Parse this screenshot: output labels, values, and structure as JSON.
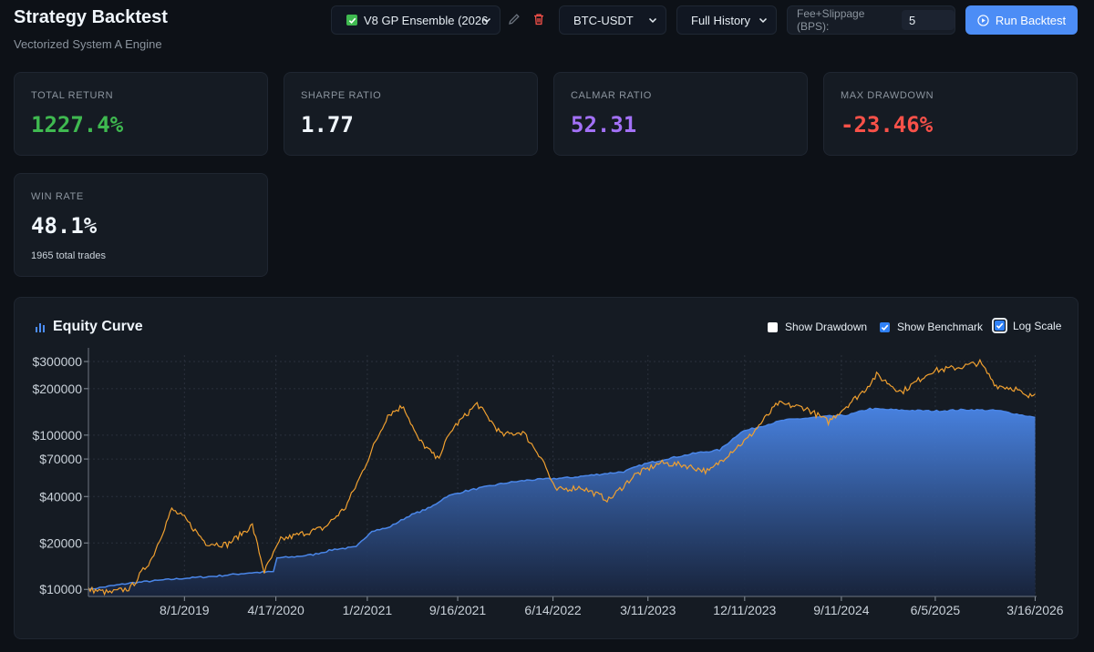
{
  "header": {
    "title": "Strategy Backtest",
    "subtitle": "Vectorized System A Engine",
    "strategy_value": "V8 GP Ensemble (2026",
    "pair_value": "BTC-USDT",
    "history_value": "Full History",
    "fee_label": "Fee+Slippage (BPS):",
    "fee_value": "5",
    "run_label": "Run Backtest"
  },
  "stats": [
    {
      "label": "TOTAL RETURN",
      "value": "1227.4%",
      "color": "#3fb950"
    },
    {
      "label": "SHARPE RATIO",
      "value": "1.77",
      "color": "#f0f6fc"
    },
    {
      "label": "CALMAR RATIO",
      "value": "52.31",
      "color": "#a371f7"
    },
    {
      "label": "MAX DRAWDOWN",
      "value": "-23.46%",
      "color": "#f85149"
    }
  ],
  "win_rate": {
    "label": "WIN RATE",
    "value": "48.1%",
    "sub": "1965 total trades"
  },
  "chart": {
    "title": "Equity Curve",
    "toggles": [
      {
        "label": "Show Drawdown",
        "checked": false
      },
      {
        "label": "Show Benchmark",
        "checked": true
      },
      {
        "label": "Log Scale",
        "checked": true
      }
    ]
  },
  "colors": {
    "strategy": "#4a86e8",
    "benchmark": "#f0a030",
    "accent": "#4c8df6"
  },
  "chart_data": {
    "type": "area",
    "log_scale": true,
    "grid": true,
    "legend": "none",
    "ylim": [
      9000,
      330000
    ],
    "y_ticks": [
      {
        "v": 10000,
        "label": "$10000"
      },
      {
        "v": 20000,
        "label": "$20000"
      },
      {
        "v": 40000,
        "label": "$40000"
      },
      {
        "v": 70000,
        "label": "$70000"
      },
      {
        "v": 100000,
        "label": "$100000"
      },
      {
        "v": 200000,
        "label": "$200000"
      },
      {
        "v": 300000,
        "label": "$300000"
      }
    ],
    "x_ticks": [
      "8/1/2019",
      "4/17/2020",
      "1/2/2021",
      "9/16/2021",
      "6/14/2022",
      "3/11/2023",
      "12/11/2023",
      "9/11/2024",
      "6/5/2025",
      "3/16/2026"
    ],
    "xlim": [
      "2018-11-01",
      "2026-03-20"
    ],
    "series": [
      {
        "role": "strategy",
        "points": [
          [
            "2018-11-01",
            10000
          ],
          [
            "2019-03-01",
            11000
          ],
          [
            "2019-06-01",
            11500
          ],
          [
            "2019-08-01",
            11800
          ],
          [
            "2019-11-01",
            12200
          ],
          [
            "2020-02-01",
            12800
          ],
          [
            "2020-04-10",
            13000
          ],
          [
            "2020-04-20",
            16000
          ],
          [
            "2020-06-01",
            16200
          ],
          [
            "2020-08-01",
            16800
          ],
          [
            "2020-10-01",
            18200
          ],
          [
            "2020-12-01",
            18800
          ],
          [
            "2021-01-15",
            24000
          ],
          [
            "2021-03-01",
            25000
          ],
          [
            "2021-05-01",
            30000
          ],
          [
            "2021-07-01",
            34000
          ],
          [
            "2021-08-15",
            40000
          ],
          [
            "2021-10-01",
            43000
          ],
          [
            "2021-12-01",
            46000
          ],
          [
            "2022-02-01",
            49000
          ],
          [
            "2022-04-01",
            51000
          ],
          [
            "2022-06-01",
            52000
          ],
          [
            "2022-08-01",
            53000
          ],
          [
            "2022-10-01",
            55000
          ],
          [
            "2023-01-01",
            58000
          ],
          [
            "2023-03-01",
            65000
          ],
          [
            "2023-05-01",
            70000
          ],
          [
            "2023-08-01",
            77000
          ],
          [
            "2023-10-01",
            80000
          ],
          [
            "2023-12-01",
            105000
          ],
          [
            "2024-02-01",
            115000
          ],
          [
            "2024-04-01",
            125000
          ],
          [
            "2024-08-01",
            132000
          ],
          [
            "2024-10-01",
            135000
          ],
          [
            "2024-12-01",
            148000
          ],
          [
            "2025-03-01",
            145000
          ],
          [
            "2025-06-01",
            143000
          ],
          [
            "2025-09-01",
            146000
          ],
          [
            "2025-12-01",
            144000
          ],
          [
            "2026-03-16",
            130000
          ]
        ]
      },
      {
        "role": "benchmark",
        "points": [
          [
            "2018-11-01",
            10000
          ],
          [
            "2019-01-01",
            9500
          ],
          [
            "2019-03-01",
            10200
          ],
          [
            "2019-05-01",
            16000
          ],
          [
            "2019-06-26",
            33000
          ],
          [
            "2019-08-01",
            29000
          ],
          [
            "2019-10-01",
            20000
          ],
          [
            "2019-12-01",
            19500
          ],
          [
            "2020-02-10",
            26000
          ],
          [
            "2020-03-15",
            13000
          ],
          [
            "2020-05-01",
            21000
          ],
          [
            "2020-07-01",
            23000
          ],
          [
            "2020-09-01",
            25000
          ],
          [
            "2020-11-01",
            34000
          ],
          [
            "2020-12-15",
            55000
          ],
          [
            "2021-01-20",
            85000
          ],
          [
            "2021-03-01",
            135000
          ],
          [
            "2021-04-15",
            155000
          ],
          [
            "2021-05-25",
            95000
          ],
          [
            "2021-07-20",
            70000
          ],
          [
            "2021-09-01",
            110000
          ],
          [
            "2021-11-10",
            160000
          ],
          [
            "2022-01-20",
            100000
          ],
          [
            "2022-03-20",
            105000
          ],
          [
            "2022-05-15",
            70000
          ],
          [
            "2022-06-20",
            44000
          ],
          [
            "2022-09-01",
            46000
          ],
          [
            "2022-11-20",
            38000
          ],
          [
            "2023-02-01",
            55000
          ],
          [
            "2023-04-15",
            66000
          ],
          [
            "2023-06-20",
            64000
          ],
          [
            "2023-09-01",
            58000
          ],
          [
            "2023-11-01",
            78000
          ],
          [
            "2023-12-20",
            95000
          ],
          [
            "2024-03-14",
            160000
          ],
          [
            "2024-06-01",
            150000
          ],
          [
            "2024-08-05",
            122000
          ],
          [
            "2024-11-15",
            195000
          ],
          [
            "2024-12-20",
            245000
          ],
          [
            "2025-03-01",
            190000
          ],
          [
            "2025-05-25",
            260000
          ],
          [
            "2025-08-10",
            275000
          ],
          [
            "2025-10-10",
            295000
          ],
          [
            "2025-11-25",
            210000
          ],
          [
            "2026-01-20",
            200000
          ],
          [
            "2026-02-20",
            175000
          ],
          [
            "2026-03-16",
            185000
          ]
        ]
      }
    ]
  }
}
